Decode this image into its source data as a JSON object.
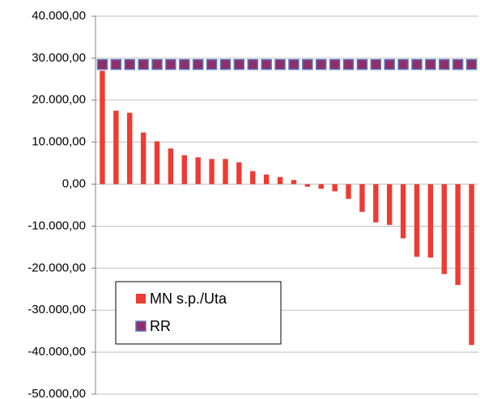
{
  "chart_data": {
    "type": "bar",
    "categories": [
      null,
      null,
      null,
      null,
      null,
      null,
      null,
      null,
      null,
      null,
      null,
      null,
      null,
      null,
      null,
      null,
      null,
      null,
      null,
      null,
      null,
      null,
      null,
      null,
      null,
      null,
      null,
      null
    ],
    "series": [
      {
        "name": "MN s.p./Uta",
        "type": "bar",
        "color": "#ee3b33",
        "values": [
          27000,
          17500,
          17000,
          12300,
          10200,
          8500,
          6900,
          6400,
          6000,
          6000,
          5200,
          3100,
          2300,
          1700,
          1000,
          -600,
          -1100,
          -1700,
          -3500,
          -6600,
          -9100,
          -9700,
          -12900,
          -17300,
          -17500,
          -21400,
          -24000,
          -38300
        ]
      },
      {
        "name": "RR",
        "type": "marker",
        "color": "#8e2f6a",
        "edgecolor": "#5b77c0",
        "values": [
          28500,
          28500,
          28500,
          28500,
          28500,
          28500,
          28500,
          28500,
          28500,
          28500,
          28500,
          28500,
          28500,
          28500,
          28500,
          28500,
          28500,
          28500,
          28500,
          28500,
          28500,
          28500,
          28500,
          28500,
          28500,
          28500,
          28500,
          28500
        ]
      }
    ],
    "ylim": [
      -50000,
      40000
    ],
    "yticks": [
      {
        "value": -50000,
        "label": "-50.000,00"
      },
      {
        "value": -40000,
        "label": "-40.000,00"
      },
      {
        "value": -30000,
        "label": "-30.000,00"
      },
      {
        "value": -20000,
        "label": "-20.000,00"
      },
      {
        "value": -10000,
        "label": "-10.000,00"
      },
      {
        "value": 0,
        "label": "0,00"
      },
      {
        "value": 10000,
        "label": "10.000,00"
      },
      {
        "value": 20000,
        "label": "20.000,00"
      },
      {
        "value": 30000,
        "label": "30.000,00"
      },
      {
        "value": 40000,
        "label": "40.000,00"
      }
    ],
    "grid": true,
    "legend": "lower left"
  }
}
